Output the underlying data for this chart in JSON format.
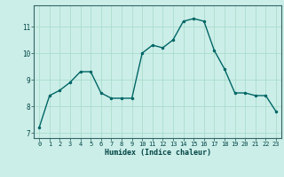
{
  "x": [
    0,
    1,
    2,
    3,
    4,
    5,
    6,
    7,
    8,
    9,
    10,
    11,
    12,
    13,
    14,
    15,
    16,
    17,
    18,
    19,
    20,
    21,
    22,
    23
  ],
  "y": [
    7.2,
    8.4,
    8.6,
    8.9,
    9.3,
    9.3,
    8.5,
    8.3,
    8.3,
    8.3,
    10.0,
    10.3,
    10.2,
    10.5,
    11.2,
    11.3,
    11.2,
    10.1,
    9.4,
    8.5,
    8.5,
    8.4,
    8.4,
    7.8
  ],
  "xlabel": "Humidex (Indice chaleur)",
  "line_color": "#006666",
  "marker_color": "#006666",
  "bg_color": "#cceee8",
  "grid_color": "#aaddcc",
  "ylim_min": 6.8,
  "ylim_max": 11.8,
  "xlim_min": -0.5,
  "xlim_max": 23.5,
  "yticks": [
    7,
    8,
    9,
    10,
    11
  ],
  "xticks": [
    0,
    1,
    2,
    3,
    4,
    5,
    6,
    7,
    8,
    9,
    10,
    11,
    12,
    13,
    14,
    15,
    16,
    17,
    18,
    19,
    20,
    21,
    22,
    23
  ]
}
